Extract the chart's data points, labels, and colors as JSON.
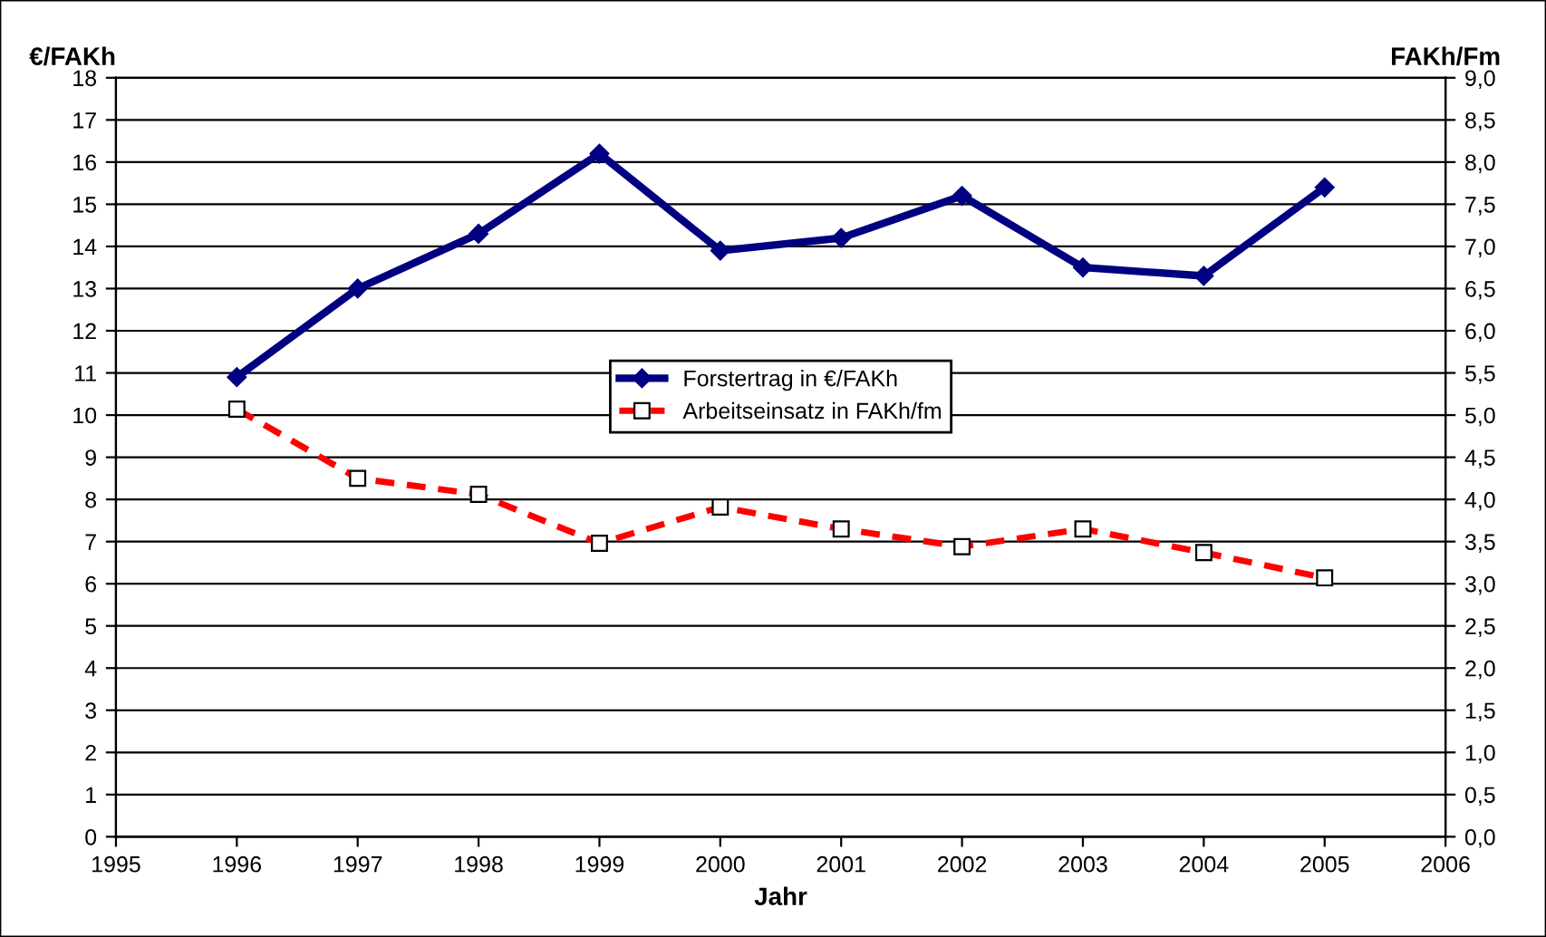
{
  "chart_data": {
    "type": "line",
    "xlabel": "Jahr",
    "ylabel": "€/FAKh",
    "y2label": "FAKh/Fm",
    "x": [
      1996,
      1997,
      1998,
      1999,
      2000,
      2001,
      2002,
      2003,
      2004,
      2005
    ],
    "series": [
      {
        "name": "Forstertrag in €/FAKh",
        "color": "#000080",
        "marker": "diamond",
        "line_style": "solid",
        "values": [
          10.9,
          13.0,
          14.3,
          16.2,
          13.9,
          14.2,
          15.2,
          13.5,
          13.3,
          15.4
        ]
      },
      {
        "name": "Arbeitseinsatz in FAKh/fm",
        "color": "#ff0000",
        "marker": "square",
        "line_style": "dashed",
        "axis": "y2",
        "values": [
          5.07,
          4.25,
          4.06,
          3.48,
          3.91,
          3.65,
          3.44,
          3.65,
          3.37,
          3.07
        ]
      }
    ],
    "xlim": [
      1995,
      2006
    ],
    "xticks": [
      1995,
      1996,
      1997,
      1998,
      1999,
      2000,
      2001,
      2002,
      2003,
      2004,
      2005,
      2006
    ],
    "ylim": [
      0,
      18
    ],
    "yticks": [
      0,
      1,
      2,
      3,
      4,
      5,
      6,
      7,
      8,
      9,
      10,
      11,
      12,
      13,
      14,
      15,
      16,
      17,
      18
    ],
    "y2lim": [
      0,
      9
    ],
    "y2ticks": [
      {
        "value": 0,
        "label": "0,0"
      },
      {
        "value": 0.5,
        "label": "0,5"
      },
      {
        "value": 1,
        "label": "1,0"
      },
      {
        "value": 1.5,
        "label": "1,5"
      },
      {
        "value": 2,
        "label": "2,0"
      },
      {
        "value": 2.5,
        "label": "2,5"
      },
      {
        "value": 3,
        "label": "3,0"
      },
      {
        "value": 3.5,
        "label": "3,5"
      },
      {
        "value": 4,
        "label": "4,0"
      },
      {
        "value": 4.5,
        "label": "4,5"
      },
      {
        "value": 5,
        "label": "5,0"
      },
      {
        "value": 5.5,
        "label": "5,5"
      },
      {
        "value": 6,
        "label": "6,0"
      },
      {
        "value": 6.5,
        "label": "6,5"
      },
      {
        "value": 7,
        "label": "7,0"
      },
      {
        "value": 7.5,
        "label": "7,5"
      },
      {
        "value": 8,
        "label": "8,0"
      },
      {
        "value": 8.5,
        "label": "8,5"
      },
      {
        "value": 9,
        "label": "9,0"
      }
    ],
    "grid": "y",
    "legend": "center"
  }
}
